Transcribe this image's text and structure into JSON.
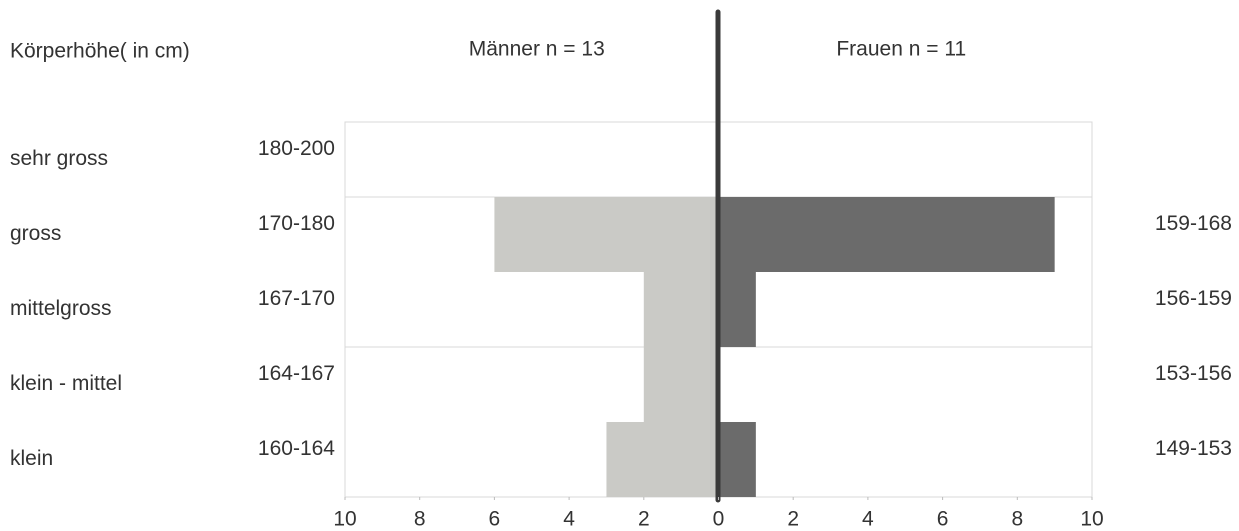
{
  "chart_data": {
    "type": "pyramid",
    "y_axis_label": "Körperhöhe( in cm)",
    "categories": [
      "sehr gross",
      "gross",
      "mittelgross",
      "klein - mittel",
      "klein"
    ],
    "left_ranges": [
      "180-200",
      "170-180",
      "167-170",
      "164-167",
      "160-164"
    ],
    "right_ranges": [
      null,
      "159-168",
      "156-159",
      "153-156",
      "149-153"
    ],
    "series": [
      {
        "name": "Männer n = 13",
        "color": "#cacac6",
        "side": "left",
        "values": [
          0,
          6,
          2,
          2,
          3
        ]
      },
      {
        "name": "Frauen n = 11",
        "color": "#6b6b6b",
        "side": "right",
        "values": [
          0,
          9,
          1,
          0,
          1
        ]
      }
    ],
    "xlim": [
      -10,
      10
    ],
    "xticks": [
      {
        "value": -10,
        "label": "10"
      },
      {
        "value": -8,
        "label": "8"
      },
      {
        "value": -6,
        "label": "6"
      },
      {
        "value": -4,
        "label": "4"
      },
      {
        "value": -2,
        "label": "2"
      },
      0,
      2,
      4,
      6,
      8,
      10
    ]
  }
}
